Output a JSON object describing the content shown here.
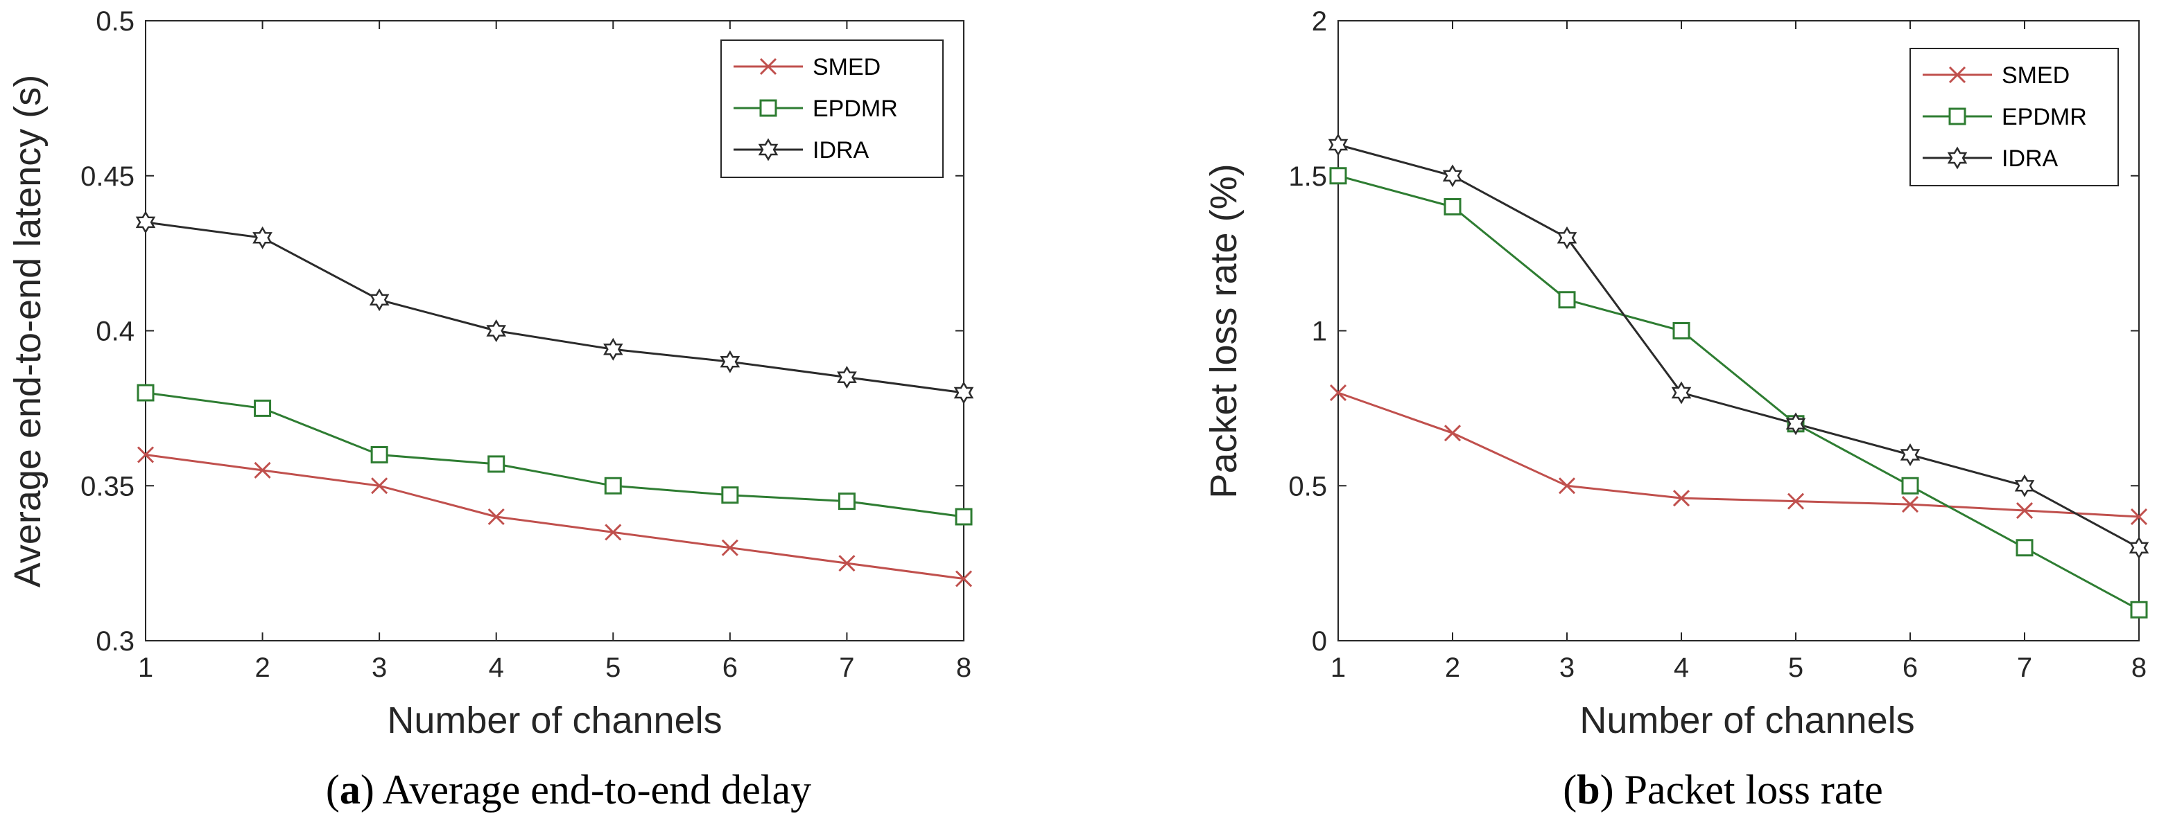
{
  "chart_data": [
    {
      "type": "line",
      "caption_letter": "a",
      "caption_text": "Average end-to-end delay",
      "xlabel": "Number of channels",
      "ylabel": "Average end-to-end latency (s)",
      "x": [
        1,
        2,
        3,
        4,
        5,
        6,
        7,
        8
      ],
      "xlim": [
        1,
        8
      ],
      "ylim": [
        0.3,
        0.5
      ],
      "yticks": [
        0.3,
        0.35,
        0.4,
        0.45,
        0.5
      ],
      "ytick_labels": [
        "0.3",
        "0.35",
        "0.4",
        "0.45",
        "0.5"
      ],
      "legend_position": "top-right",
      "series": [
        {
          "name": "SMED",
          "marker": "x-mark",
          "color": "#c0504d",
          "values": [
            0.36,
            0.355,
            0.35,
            0.34,
            0.335,
            0.33,
            0.325,
            0.32
          ]
        },
        {
          "name": "EPDMR",
          "marker": "square",
          "color": "#2e7d32",
          "values": [
            0.38,
            0.375,
            0.36,
            0.357,
            0.35,
            0.347,
            0.345,
            0.34
          ]
        },
        {
          "name": "IDRA",
          "marker": "hexagram",
          "color": "#2b2b2b",
          "values": [
            0.435,
            0.43,
            0.41,
            0.4,
            0.394,
            0.39,
            0.385,
            0.38
          ]
        }
      ]
    },
    {
      "type": "line",
      "caption_letter": "b",
      "caption_text": "Packet loss rate",
      "xlabel": "Number of channels",
      "ylabel": "Packet loss rate (%)",
      "x": [
        1,
        2,
        3,
        4,
        5,
        6,
        7,
        8
      ],
      "xlim": [
        1,
        8
      ],
      "ylim": [
        0,
        2
      ],
      "yticks": [
        0,
        0.5,
        1,
        1.5,
        2
      ],
      "ytick_labels": [
        "0",
        "0.5",
        "1",
        "1.5",
        "2"
      ],
      "legend_position": "top-right",
      "series": [
        {
          "name": "SMED",
          "marker": "x-mark",
          "color": "#c0504d",
          "values": [
            0.8,
            0.67,
            0.5,
            0.46,
            0.45,
            0.44,
            0.42,
            0.4
          ]
        },
        {
          "name": "EPDMR",
          "marker": "square",
          "color": "#2e7d32",
          "values": [
            1.5,
            1.4,
            1.1,
            1.0,
            0.7,
            0.5,
            0.3,
            0.1
          ]
        },
        {
          "name": "IDRA",
          "marker": "hexagram",
          "color": "#2b2b2b",
          "values": [
            1.6,
            1.5,
            1.3,
            0.8,
            0.7,
            0.6,
            0.5,
            0.3
          ]
        }
      ]
    }
  ]
}
